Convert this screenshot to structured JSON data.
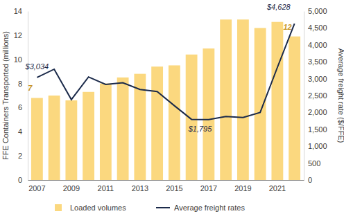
{
  "chart_data": {
    "type": "bar",
    "categories": [
      "2007",
      null,
      "2009",
      null,
      "2011",
      null,
      "2013",
      null,
      "2015",
      null,
      "2017",
      null,
      "2019",
      null,
      "2021",
      null
    ],
    "y_label": "FFE Containers Transported (millions)",
    "y2_label": "Average freight rate ($/FFE)",
    "ylim": [
      0,
      14
    ],
    "yticks": [
      0,
      2,
      4,
      6,
      8,
      10,
      12,
      14
    ],
    "y2lim": [
      0,
      5000
    ],
    "y2ticks": [
      0,
      500,
      {
        "value": 1000,
        "label": "1,000"
      },
      {
        "value": 1500,
        "label": "1,500"
      },
      {
        "value": 2000,
        "label": "2,000"
      },
      {
        "value": 2500,
        "label": "2,500"
      },
      {
        "value": 3000,
        "label": "3,000"
      },
      {
        "value": 3500,
        "label": "3,500"
      },
      {
        "value": 4000,
        "label": "4,000"
      },
      {
        "value": 4500,
        "label": "4,500"
      },
      {
        "value": 5000,
        "label": "5,000"
      }
    ],
    "legend": "bottom",
    "series": [
      {
        "name": "Loaded volumes",
        "type": "bar",
        "color": "#fbd87f",
        "values": [
          6.8,
          7.0,
          6.6,
          7.3,
          8.0,
          8.5,
          8.8,
          9.4,
          9.5,
          10.4,
          10.9,
          13.3,
          13.3,
          12.6,
          13.1,
          11.9
        ],
        "value_labels": [
          "7",
          null,
          null,
          null,
          null,
          null,
          null,
          null,
          null,
          null,
          null,
          null,
          null,
          null,
          null,
          "12"
        ]
      },
      {
        "name": "Average freight rates",
        "type": "line",
        "axis": "y2",
        "color": "#1b2a4a",
        "values": [
          3034,
          3280,
          2380,
          3050,
          2830,
          2880,
          2680,
          2620,
          2200,
          1795,
          1790,
          1880,
          1850,
          2000,
          3330,
          4628
        ],
        "value_labels": [
          "$3,034",
          null,
          null,
          null,
          null,
          null,
          null,
          null,
          null,
          "$1,795",
          null,
          null,
          null,
          null,
          null,
          "$4,628"
        ]
      }
    ]
  }
}
